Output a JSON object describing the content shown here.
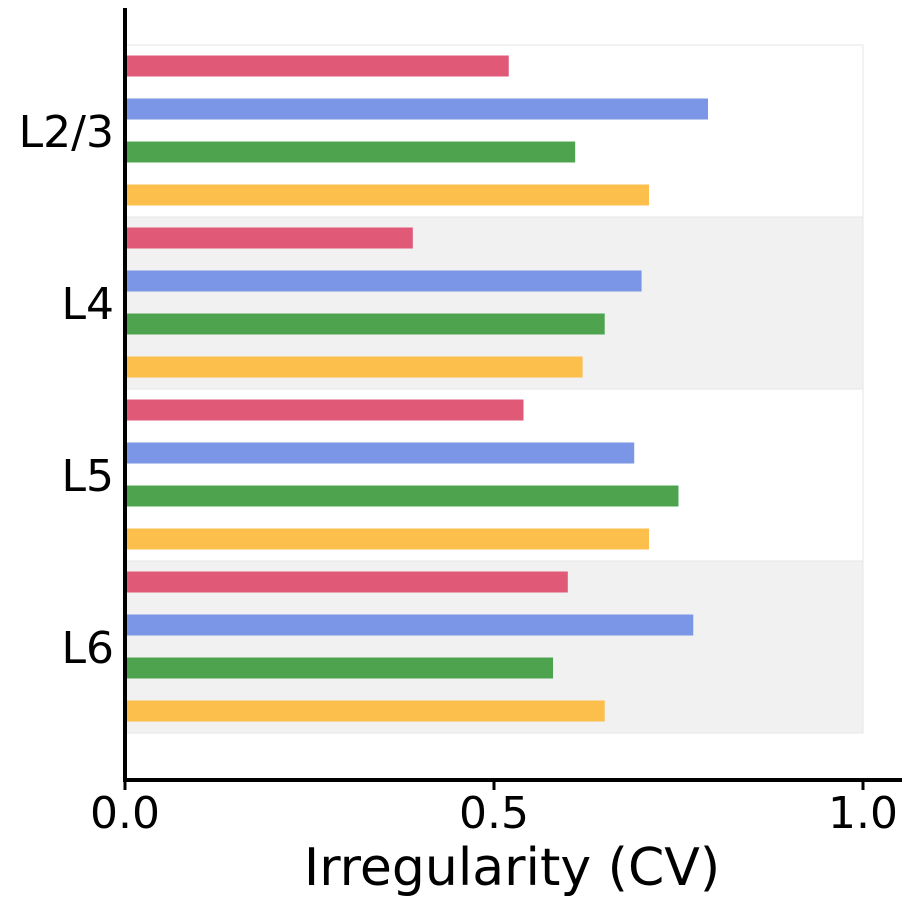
{
  "chart_data": {
    "type": "bar",
    "orientation": "horizontal",
    "title": "",
    "xlabel": "Irregularity (CV)",
    "ylabel": "",
    "xlim": [
      0.0,
      1.0
    ],
    "xticks": [
      "0.0",
      "0.5",
      "1.0"
    ],
    "categories": [
      "L2/3",
      "L4",
      "L5",
      "L6"
    ],
    "series": [
      {
        "color": "#e05a78",
        "values": [
          0.52,
          0.39,
          0.54,
          0.6
        ]
      },
      {
        "color": "#7b96e6",
        "values": [
          0.79,
          0.7,
          0.69,
          0.77
        ]
      },
      {
        "color": "#4ea44e",
        "values": [
          0.61,
          0.65,
          0.75,
          0.58
        ]
      },
      {
        "color": "#fcbf4c",
        "values": [
          0.71,
          0.62,
          0.71,
          0.65
        ]
      }
    ],
    "band_colors": [
      "#ffffff",
      "#f1f1f1",
      "#ffffff",
      "#f1f1f1"
    ],
    "grid": false,
    "legend": "none"
  }
}
